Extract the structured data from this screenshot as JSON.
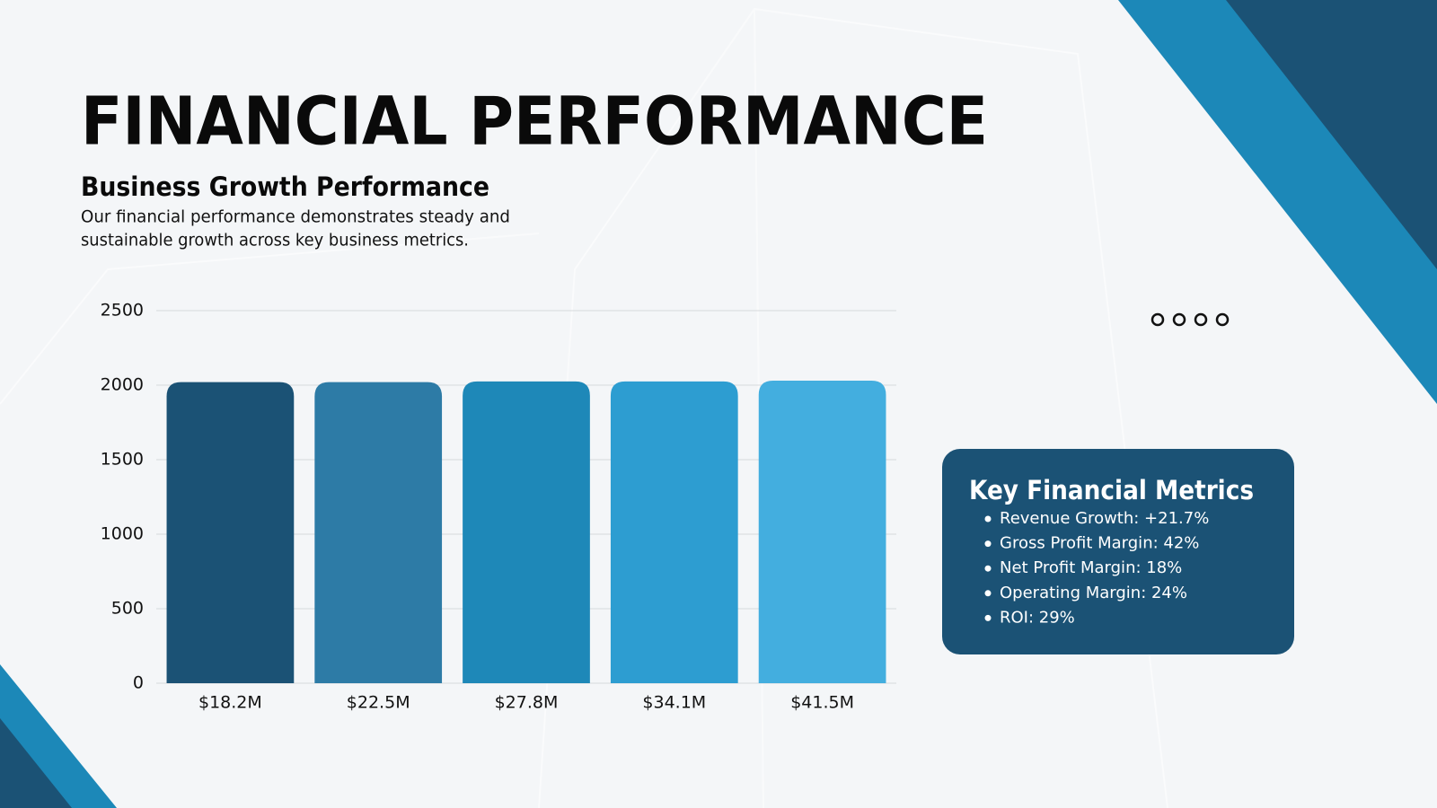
{
  "header": {
    "title": "FINANCIAL PERFORMANCE",
    "subtitle": "Business Growth Performance",
    "description": [
      "Our financial performance demonstrates steady and",
      "sustainable growth across key business metrics."
    ]
  },
  "chart_data": {
    "type": "bar",
    "categories": [
      "$18.2M",
      "$22.5M",
      "$27.8M",
      "$34.1M",
      "$41.5M"
    ],
    "values": [
      2020,
      2020,
      2025,
      2025,
      2030
    ],
    "colors": [
      "#1b5275",
      "#2d7ba6",
      "#1e88b8",
      "#2d9dd1",
      "#43aedf"
    ],
    "ylim": [
      0,
      2500
    ],
    "yticks": [
      0,
      500,
      1000,
      1500,
      2000,
      2500
    ],
    "grid": true
  },
  "metrics": {
    "title": "Key Financial Metrics",
    "items": [
      "Revenue Growth: +21.7%",
      "Gross Profit Margin: 42%",
      "Net Profit Margin: 18%",
      "Operating Margin: 24%",
      "ROI: 29%"
    ]
  }
}
